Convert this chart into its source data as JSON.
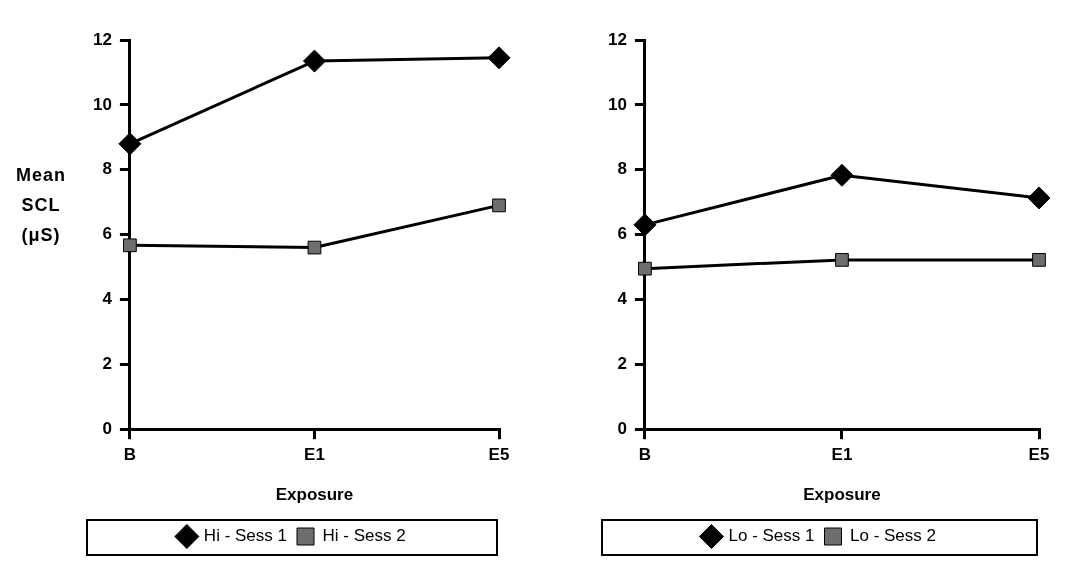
{
  "chart_data": [
    {
      "type": "line",
      "ylabel": "Mean SCL (μS)",
      "xlabel": "Exposure",
      "categories": [
        "B",
        "E1",
        "E5"
      ],
      "ylim": [
        0,
        12
      ],
      "yticks": [
        0,
        2,
        4,
        6,
        8,
        10,
        12
      ],
      "grid": false,
      "legend": "bottom",
      "line_style": "solid",
      "series": [
        {
          "name": "Hi - Sess 1",
          "color": "#000000",
          "marker": "diamond",
          "values": [
            8.8,
            11.35,
            11.45
          ]
        },
        {
          "name": "Hi - Sess 2",
          "color": "#6e6e6e",
          "marker": "square",
          "values": [
            5.67,
            5.6,
            6.9
          ]
        }
      ]
    },
    {
      "type": "line",
      "xlabel": "Exposure",
      "categories": [
        "B",
        "E1",
        "E5"
      ],
      "ylim": [
        0,
        12
      ],
      "yticks": [
        0,
        2,
        4,
        6,
        8,
        10,
        12
      ],
      "grid": false,
      "legend": "bottom",
      "line_style": "solid",
      "series": [
        {
          "name": "Lo - Sess 1",
          "color": "#000000",
          "marker": "diamond",
          "values": [
            6.3,
            7.83,
            7.13
          ]
        },
        {
          "name": "Lo - Sess 2",
          "color": "#6e6e6e",
          "marker": "square",
          "values": [
            4.95,
            5.22,
            5.22
          ]
        }
      ]
    }
  ]
}
